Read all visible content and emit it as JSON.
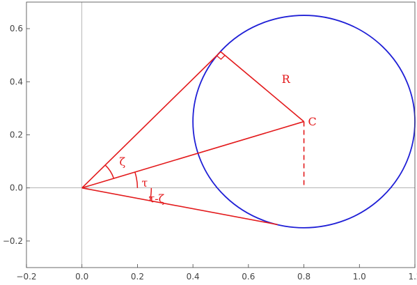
{
  "chart_data": {
    "type": "line",
    "title": "",
    "xlabel": "",
    "ylabel": "",
    "xlim": [
      -0.2,
      1.2
    ],
    "ylim": [
      -0.3,
      0.7
    ],
    "x_ticks": [
      -0.2,
      0.0,
      0.2,
      0.4,
      0.6,
      0.8,
      1.0,
      1.2
    ],
    "x_tick_labels": [
      "−0.2",
      "0.0",
      "0.2",
      "0.4",
      "0.6",
      "0.8",
      "1.0",
      "1.2"
    ],
    "y_ticks": [
      -0.2,
      0.0,
      0.2,
      0.4,
      0.6
    ],
    "y_tick_labels": [
      "−0.2",
      "0.0",
      "0.2",
      "0.4",
      "0.6"
    ],
    "grid": false,
    "colors": {
      "circle": "#1f1fd6",
      "construction": "#e31a1c",
      "axes": "#888888"
    },
    "circle": {
      "center": [
        0.8,
        0.25
      ],
      "radius": 0.4
    },
    "segments": [
      {
        "name": "upper-tangent",
        "from": [
          0.0,
          0.0
        ],
        "to": [
          0.5,
          0.513
        ]
      },
      {
        "name": "center-line",
        "from": [
          0.0,
          0.0
        ],
        "to": [
          0.8,
          0.25
        ]
      },
      {
        "name": "lower-tangent",
        "from": [
          0.0,
          0.0
        ],
        "to": [
          0.705,
          -0.138
        ]
      },
      {
        "name": "radius",
        "from": [
          0.8,
          0.25
        ],
        "to": [
          0.5,
          0.513
        ]
      }
    ],
    "dashed_segments": [
      {
        "name": "center-drop",
        "from": [
          0.8,
          0.25
        ],
        "to": [
          0.8,
          0.0
        ]
      }
    ],
    "angle_arcs": [
      {
        "name": "arc-zeta",
        "radius": 0.12,
        "from_deg": 17.35,
        "to_deg": 45.7
      },
      {
        "name": "arc-tau",
        "radius": 0.2,
        "from_deg": 0,
        "to_deg": 17.35
      },
      {
        "name": "arc-tau-zeta",
        "radius": 0.25,
        "from_deg": -11.05,
        "to_deg": 0
      }
    ],
    "annotations": [
      {
        "name": "label-R",
        "text": "R",
        "x": 0.72,
        "y": 0.395
      },
      {
        "name": "label-C",
        "text": "C",
        "x": 0.815,
        "y": 0.235
      },
      {
        "name": "label-zeta",
        "text": "ζ",
        "x": 0.135,
        "y": 0.085
      },
      {
        "name": "label-tau",
        "text": "τ",
        "x": 0.215,
        "y": 0.005
      },
      {
        "name": "label-tau-zeta",
        "text": "τ-ζ",
        "x": 0.24,
        "y": -0.055
      }
    ]
  }
}
